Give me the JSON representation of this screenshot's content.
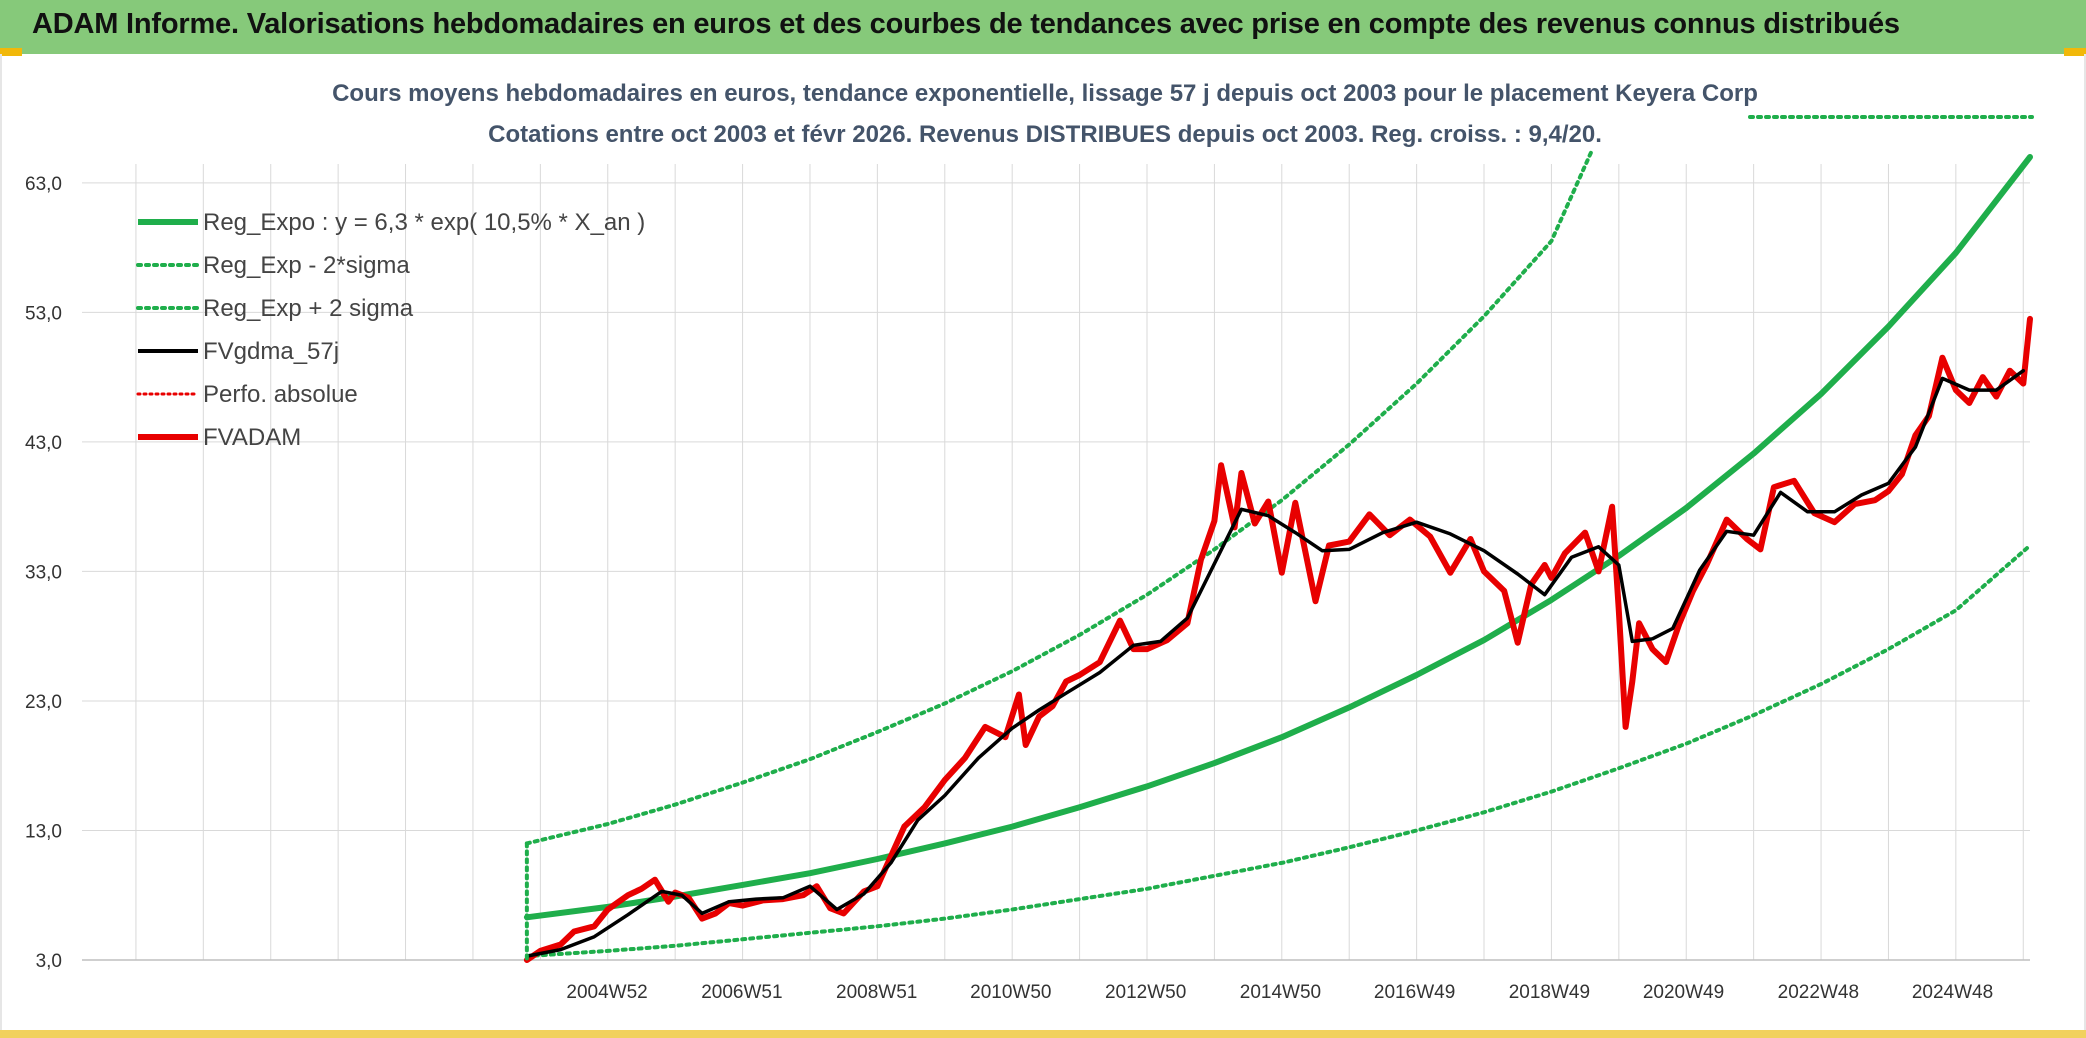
{
  "banner": {
    "title": "ADAM Informe. Valorisations hebdomadaires en euros et des courbes de tendances avec prise en compte des revenus connus distribués"
  },
  "colors": {
    "banner_bg": "#86c97a",
    "accent_yellow": "#f1b80a",
    "trend_green": "#1fae4b",
    "price_red": "#e80000",
    "smooth_black": "#000000",
    "grid": "#d9d9d9"
  },
  "chart_data": {
    "type": "line",
    "title": "Cours moyens hebdomadaires en euros, tendance exponentielle, lissage 57 j depuis oct 2003 pour le placement Keyera Corp",
    "subtitle": "Cotations entre oct 2003 et févr 2026. Revenus DISTRIBUES depuis oct 2003. Reg. croiss. : 9,4/20.",
    "xlabel": "",
    "ylabel": "",
    "x_range_years": [
      1997.2,
      2026.1
    ],
    "ylim": [
      3,
      66
    ],
    "y_ticks": [
      3,
      13,
      23,
      33,
      43,
      53,
      63
    ],
    "y_tick_labels": [
      "3,0",
      "13,0",
      "23,0",
      "33,0",
      "43,0",
      "53,0",
      "63,0"
    ],
    "x_tick_labels": [
      "2004W52",
      "2006W51",
      "2008W51",
      "2010W50",
      "2012W50",
      "2014W50",
      "2016W49",
      "2018W49",
      "2020W49",
      "2022W48",
      "2024W48"
    ],
    "x_tick_years": [
      2004.99,
      2006.99,
      2008.99,
      2010.98,
      2012.98,
      2014.98,
      2016.97,
      2018.97,
      2020.96,
      2022.96,
      2024.95
    ],
    "grid": true,
    "legend_position": "top-left",
    "series": [
      {
        "name": "Reg_Expo : y = 6,3 * exp( 10,5% *  X_an )",
        "style": "solid-thick",
        "color": "#1fae4b",
        "x": [
          2003.8,
          2005.0,
          2006.0,
          2007.0,
          2008.0,
          2009.0,
          2010.0,
          2011.0,
          2012.0,
          2013.0,
          2014.0,
          2015.0,
          2016.0,
          2017.0,
          2018.0,
          2019.0,
          2020.0,
          2021.0,
          2022.0,
          2023.0,
          2024.0,
          2025.0,
          2026.1
        ],
        "values": [
          6.3,
          7.1,
          7.9,
          8.8,
          9.7,
          10.8,
          12.0,
          13.3,
          14.8,
          16.4,
          18.2,
          20.2,
          22.5,
          25.0,
          27.7,
          30.8,
          34.2,
          37.9,
          42.1,
          46.7,
          51.9,
          57.6,
          65.0
        ]
      },
      {
        "name": "Reg_Exp - 2*sigma",
        "style": "dotted",
        "color": "#1fae4b",
        "x": [
          2003.8,
          2005.0,
          2006.0,
          2007.0,
          2008.0,
          2009.0,
          2010.0,
          2011.0,
          2012.0,
          2013.0,
          2014.0,
          2015.0,
          2016.0,
          2017.0,
          2018.0,
          2019.0,
          2020.0,
          2021.0,
          2022.0,
          2023.0,
          2024.0,
          2025.0,
          2026.1
        ],
        "values": [
          3.3,
          3.7,
          4.1,
          4.6,
          5.1,
          5.6,
          6.2,
          6.9,
          7.7,
          8.5,
          9.5,
          10.5,
          11.7,
          13.0,
          14.4,
          16.0,
          17.8,
          19.7,
          21.9,
          24.3,
          27.0,
          30.0,
          35.0
        ]
      },
      {
        "name": "Reg_Exp + 2 sigma",
        "style": "dotted",
        "color": "#1fae4b",
        "x": [
          2003.8,
          2005.0,
          2006.0,
          2007.0,
          2008.0,
          2009.0,
          2010.0,
          2011.0,
          2012.0,
          2013.0,
          2014.0,
          2015.0,
          2016.0,
          2017.0,
          2018.0,
          2019.0,
          2019.6
        ],
        "values": [
          12.0,
          13.5,
          15.0,
          16.7,
          18.5,
          20.6,
          22.8,
          25.3,
          28.1,
          31.2,
          34.7,
          38.5,
          42.8,
          47.5,
          52.7,
          58.5,
          65.5
        ]
      },
      {
        "name": "FVgdma_57j",
        "style": "solid",
        "color": "#000000",
        "x": [
          2003.8,
          2004.3,
          2004.8,
          2005.3,
          2005.8,
          2006.1,
          2006.4,
          2006.8,
          2007.2,
          2007.6,
          2008.0,
          2008.4,
          2008.8,
          2009.2,
          2009.6,
          2010.0,
          2010.5,
          2011.0,
          2011.4,
          2011.8,
          2012.3,
          2012.8,
          2013.2,
          2013.6,
          2014.0,
          2014.4,
          2014.8,
          2015.2,
          2015.6,
          2016.0,
          2016.5,
          2017.0,
          2017.5,
          2018.0,
          2018.5,
          2018.9,
          2019.3,
          2019.7,
          2020.0,
          2020.2,
          2020.5,
          2020.8,
          2021.2,
          2021.6,
          2022.0,
          2022.4,
          2022.8,
          2023.2,
          2023.6,
          2024.0,
          2024.4,
          2024.8,
          2025.2,
          2025.6,
          2026.0
        ],
        "values": [
          3.3,
          3.8,
          4.8,
          6.5,
          8.3,
          8.0,
          6.6,
          7.5,
          7.7,
          7.8,
          8.7,
          6.9,
          8.1,
          10.5,
          13.8,
          15.7,
          18.6,
          20.9,
          22.3,
          23.6,
          25.2,
          27.3,
          27.6,
          29.4,
          33.6,
          37.8,
          37.3,
          36.0,
          34.6,
          34.7,
          36.0,
          36.8,
          35.9,
          34.6,
          32.8,
          31.2,
          34.1,
          34.9,
          33.5,
          27.6,
          27.8,
          28.6,
          33.1,
          36.1,
          35.8,
          39.1,
          37.6,
          37.6,
          38.9,
          39.8,
          42.6,
          47.9,
          47.0,
          47.0,
          48.5
        ]
      },
      {
        "name": "Perfo. absolue",
        "style": "dotted",
        "color": "#e80000",
        "x": [],
        "values": []
      },
      {
        "name": "FVADAM",
        "style": "solid-thick",
        "color": "#e80000",
        "x": [
          2003.8,
          2004.0,
          2004.3,
          2004.5,
          2004.8,
          2005.0,
          2005.3,
          2005.5,
          2005.7,
          2005.9,
          2006.0,
          2006.2,
          2006.4,
          2006.6,
          2006.8,
          2007.0,
          2007.3,
          2007.6,
          2007.9,
          2008.1,
          2008.3,
          2008.5,
          2008.8,
          2009.0,
          2009.2,
          2009.4,
          2009.7,
          2010.0,
          2010.3,
          2010.6,
          2010.9,
          2011.1,
          2011.2,
          2011.4,
          2011.6,
          2011.8,
          2012.0,
          2012.3,
          2012.6,
          2012.8,
          2013.0,
          2013.3,
          2013.6,
          2013.8,
          2014.0,
          2014.1,
          2014.3,
          2014.4,
          2014.6,
          2014.8,
          2015.0,
          2015.2,
          2015.5,
          2015.7,
          2016.0,
          2016.3,
          2016.6,
          2016.9,
          2017.2,
          2017.5,
          2017.8,
          2018.0,
          2018.3,
          2018.5,
          2018.7,
          2018.9,
          2019.0,
          2019.2,
          2019.5,
          2019.7,
          2019.9,
          2020.0,
          2020.1,
          2020.2,
          2020.3,
          2020.5,
          2020.7,
          2020.9,
          2021.1,
          2021.3,
          2021.6,
          2021.9,
          2022.1,
          2022.3,
          2022.6,
          2022.9,
          2023.2,
          2023.5,
          2023.8,
          2024.0,
          2024.2,
          2024.4,
          2024.6,
          2024.8,
          2025.0,
          2025.2,
          2025.4,
          2025.6,
          2025.8,
          2026.0,
          2026.1
        ],
        "values": [
          3.0,
          3.7,
          4.2,
          5.2,
          5.6,
          6.9,
          8.0,
          8.5,
          9.2,
          7.5,
          8.2,
          7.8,
          6.2,
          6.6,
          7.4,
          7.2,
          7.6,
          7.7,
          8.0,
          8.7,
          7.0,
          6.6,
          8.3,
          8.7,
          11.0,
          13.3,
          14.8,
          16.9,
          18.6,
          21.0,
          20.2,
          23.5,
          19.6,
          21.8,
          22.6,
          24.5,
          25.0,
          26.0,
          29.2,
          27.0,
          27.0,
          27.7,
          29.0,
          33.9,
          36.9,
          41.2,
          36.4,
          40.6,
          36.7,
          38.4,
          32.9,
          38.3,
          30.7,
          35.0,
          35.3,
          37.4,
          35.8,
          37.0,
          35.7,
          32.9,
          35.5,
          33.0,
          31.5,
          27.5,
          32.0,
          33.5,
          32.5,
          34.4,
          36.0,
          33.0,
          38.0,
          30.0,
          21.0,
          24.5,
          29.0,
          27.0,
          26.0,
          29.0,
          31.5,
          33.5,
          37.0,
          35.5,
          34.7,
          39.5,
          40.0,
          37.5,
          36.8,
          38.2,
          38.5,
          39.2,
          40.5,
          43.5,
          45.0,
          49.5,
          47.0,
          46.0,
          48.0,
          46.5,
          48.5,
          47.5,
          52.5
        ]
      }
    ]
  }
}
